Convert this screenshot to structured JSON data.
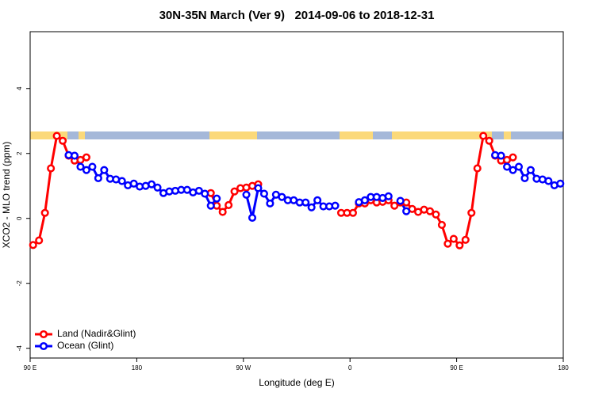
{
  "chart_data": {
    "type": "line",
    "title": "30N-35N March (Ver 9)   2014-09-06 to 2018-12-31",
    "x_label": "Longitude (deg E)",
    "y_label": "XCO2 - MLO trend (ppm)",
    "x": [
      92.5,
      97.5,
      102.5,
      107.5,
      112.5,
      117.5,
      122.5,
      127.5,
      132.5,
      137.5,
      142.5,
      147.5,
      152.5,
      157.5,
      162.5,
      167.5,
      172.5,
      177.5,
      182.5,
      187.5,
      192.5,
      197.5,
      202.5,
      207.5,
      212.5,
      217.5,
      222.5,
      227.5,
      232.5,
      237.5,
      242.5,
      247.5,
      252.5,
      257.5,
      262.5,
      267.5,
      272.5,
      277.5,
      282.5,
      287.5,
      292.5,
      297.5,
      302.5,
      307.5,
      312.5,
      317.5,
      322.5,
      327.5,
      332.5,
      337.5,
      342.5,
      347.5,
      352.5,
      357.5,
      362.5,
      367.5,
      372.5,
      377.5,
      382.5,
      387.5,
      392.5,
      397.5,
      402.5,
      407.5,
      412.5,
      417.5,
      422.5,
      427.5,
      432.5,
      437.5,
      442.5,
      447.5,
      452.5,
      457.5,
      462.5,
      467.5,
      472.5,
      477.5,
      482.5,
      487.5,
      492.5,
      497.5,
      502.5,
      507.5,
      512.5,
      517.5,
      522.5,
      527.5,
      532.5,
      537.5
    ],
    "series": [
      {
        "name": "Land (Nadir&Glint)",
        "color": "#ff0000",
        "values": [
          -0.82,
          -0.68,
          0.17,
          1.54,
          2.54,
          2.39,
          1.93,
          1.78,
          1.8,
          1.88,
          null,
          null,
          null,
          null,
          null,
          null,
          null,
          null,
          null,
          null,
          null,
          null,
          null,
          null,
          null,
          null,
          null,
          null,
          null,
          null,
          0.78,
          0.39,
          0.2,
          0.41,
          0.83,
          0.93,
          0.95,
          1.0,
          1.05,
          null,
          null,
          null,
          null,
          null,
          null,
          null,
          null,
          null,
          null,
          null,
          null,
          null,
          0.17,
          0.17,
          0.17,
          0.46,
          0.46,
          0.56,
          0.49,
          0.51,
          0.56,
          0.39,
          0.49,
          0.49,
          0.29,
          0.2,
          0.27,
          0.22,
          0.12,
          -0.2,
          -0.78,
          -0.63,
          -0.83,
          -0.66,
          0.17,
          1.54,
          2.54,
          2.39,
          1.93,
          1.78,
          1.8,
          1.88,
          null,
          null,
          null,
          null,
          null,
          null,
          null,
          null
        ]
      },
      {
        "name": "Ocean (Glint)",
        "color": "#0000ff",
        "values": [
          null,
          null,
          null,
          null,
          null,
          null,
          1.95,
          1.93,
          1.59,
          1.49,
          1.59,
          1.24,
          1.49,
          1.22,
          1.2,
          1.15,
          1.02,
          1.07,
          0.98,
          1.0,
          1.05,
          0.95,
          0.78,
          0.83,
          0.85,
          0.88,
          0.88,
          0.8,
          0.85,
          0.76,
          0.39,
          0.61,
          null,
          null,
          null,
          null,
          0.73,
          0.02,
          0.93,
          0.76,
          0.46,
          0.73,
          0.66,
          0.56,
          0.56,
          0.49,
          0.49,
          0.34,
          0.56,
          0.37,
          0.37,
          0.39,
          null,
          null,
          null,
          0.5,
          0.56,
          0.66,
          0.66,
          0.63,
          0.68,
          null,
          0.54,
          0.22,
          null,
          null,
          null,
          null,
          null,
          null,
          null,
          null,
          null,
          null,
          null,
          null,
          null,
          null,
          1.95,
          1.93,
          1.59,
          1.49,
          1.59,
          1.24,
          1.49,
          1.22,
          1.2,
          1.15,
          1.02,
          1.07
        ]
      }
    ],
    "xlim": [
      90,
      540
    ],
    "xticks": [
      {
        "value": 90,
        "label": "90 E"
      },
      180,
      {
        "value": 270,
        "label": "90 W"
      },
      {
        "value": 360,
        "label": "0"
      },
      {
        "value": 450,
        "label": "90 E"
      },
      {
        "value": 540,
        "label": "180"
      }
    ],
    "ylim": [
      -4.3,
      5.75
    ],
    "yticks": [
      -4,
      -2,
      0,
      2,
      4
    ],
    "legend": "bottom-left"
  }
}
